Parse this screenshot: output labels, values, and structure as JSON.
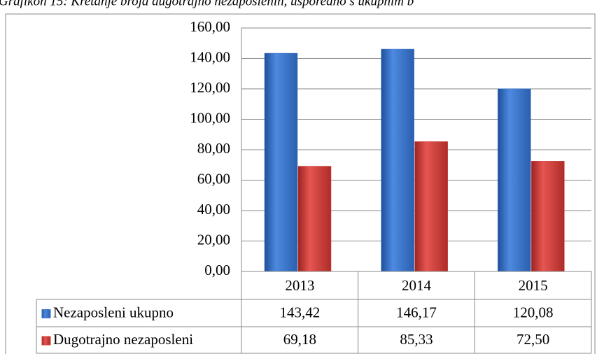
{
  "chart_data": {
    "type": "bar",
    "title": "Grafikon 15: Kretanje broja dugotrajno nezaposlenih, usporedno s ukupnim b",
    "categories": [
      "2013",
      "2014",
      "2015"
    ],
    "series": [
      {
        "name": "Nezaposleni ukupno",
        "color": "#3a74c8",
        "values": [
          143.42,
          146.17,
          120.08
        ],
        "value_labels": [
          "143,42",
          "146,17",
          "120,08"
        ]
      },
      {
        "name": "Dugotrajno nezaposleni",
        "color": "#d2403c",
        "values": [
          69.18,
          85.33,
          72.5
        ],
        "value_labels": [
          "69,18",
          "85,33",
          "72,50"
        ]
      }
    ],
    "ylim": [
      0,
      160
    ],
    "yticks": [
      {
        "value": 0,
        "label": "0,00"
      },
      {
        "value": 20,
        "label": "20,00"
      },
      {
        "value": 40,
        "label": "40,00"
      },
      {
        "value": 60,
        "label": "60,00"
      },
      {
        "value": 80,
        "label": "80,00"
      },
      {
        "value": 100,
        "label": "100,00"
      },
      {
        "value": 120,
        "label": "120,00"
      },
      {
        "value": 140,
        "label": "140,00"
      },
      {
        "value": 160,
        "label": "160,00"
      }
    ],
    "grid": true
  }
}
